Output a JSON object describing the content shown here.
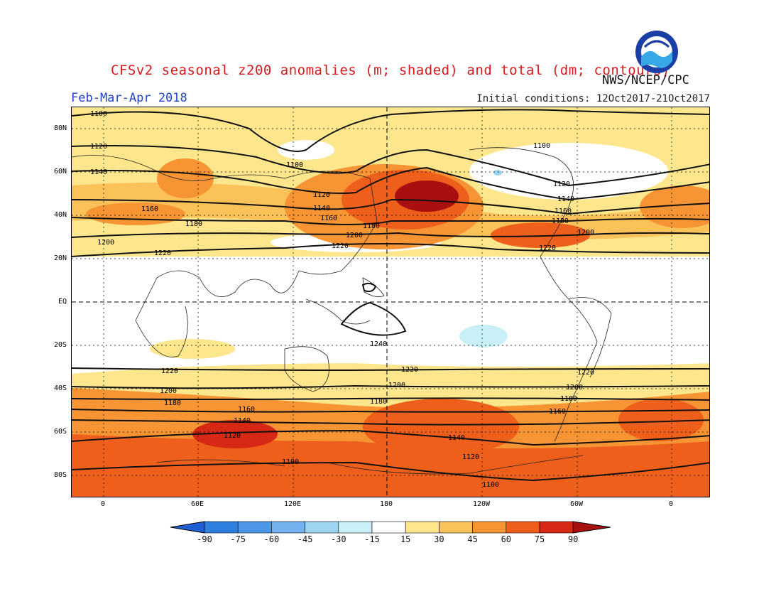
{
  "header": {
    "title": "CFSv2 seasonal z200 anomalies (m; shaded) and total (dm; contours)",
    "agency": "NWS/NCEP/CPC",
    "season": "Feb-Mar-Apr 2018",
    "initial_conditions": "Initial conditions: 12Oct2017-21Oct2017",
    "logo_text": "NOAA"
  },
  "axes": {
    "lat_labels": [
      "80N",
      "60N",
      "40N",
      "20N",
      "EQ",
      "20S",
      "40S",
      "60S",
      "80S"
    ],
    "lon_labels": [
      "0",
      "60E",
      "120E",
      "180",
      "120W",
      "60W",
      "0"
    ]
  },
  "colorbar": {
    "labels": [
      "-90",
      "-75",
      "-60",
      "-45",
      "-30",
      "-15",
      "15",
      "30",
      "45",
      "60",
      "75",
      "90"
    ],
    "colors": [
      "#1f5fd1",
      "#2f7fe0",
      "#4e97e8",
      "#73b2ee",
      "#9fd3f2",
      "#c9f0f6",
      "#ffffff",
      "#fde68c",
      "#fbc25a",
      "#f79433",
      "#ef5f1c",
      "#d62814",
      "#a81010"
    ]
  },
  "contour_labels": {
    "north": [
      "1100",
      "1120",
      "1140",
      "1160",
      "1180",
      "1200",
      "1220"
    ],
    "south": [
      "1240",
      "1220",
      "1200",
      "1180",
      "1160",
      "1140",
      "1120",
      "1100"
    ]
  }
}
